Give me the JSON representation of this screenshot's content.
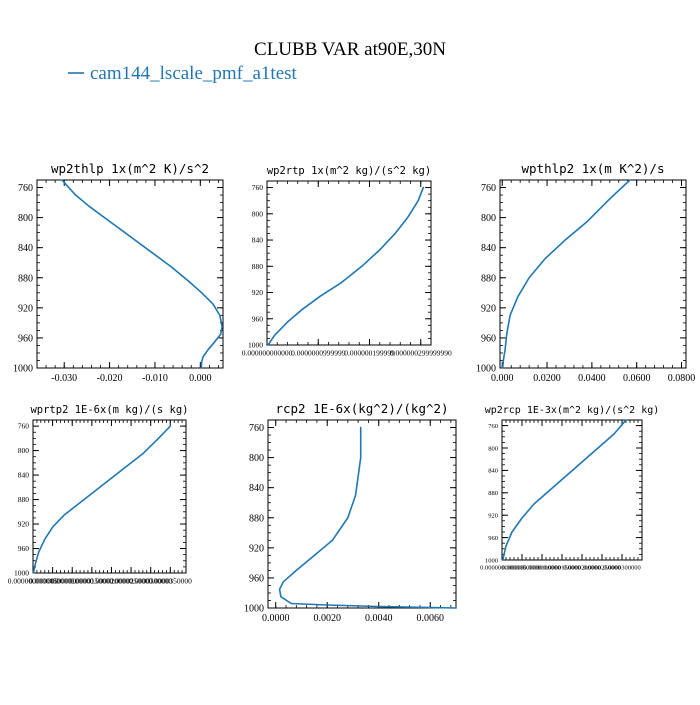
{
  "figure": {
    "title": "CLUBB VAR at90E,30N",
    "legend_label": "cam144_lscale_pmf_a1test",
    "line_color": "#1f77b4"
  },
  "chart_data": [
    {
      "type": "line",
      "title": "wp2thlp  1x(m^2 K)/s^2",
      "xlim": [
        -0.036,
        0.005
      ],
      "ylim": [
        1000,
        750
      ],
      "xticks": [
        -0.03,
        -0.02,
        -0.01,
        0.0
      ],
      "xtick_labels": [
        "-0.030",
        "-0.020",
        "-0.010",
        "0.000"
      ],
      "yticks": [
        760,
        800,
        840,
        880,
        920,
        960,
        1000
      ],
      "ytick_labels": [
        "760",
        "800",
        "840",
        "880",
        "920",
        "960",
        "1000"
      ],
      "series": [
        {
          "x": [
            -0.0305,
            -0.0275,
            -0.0245,
            -0.02,
            -0.0155,
            -0.011,
            -0.0065,
            -0.0025,
            0.0003,
            0.0028,
            0.0043,
            0.0048,
            0.0045,
            0.0032,
            0.0018,
            0.0006,
            0.0003,
            0.0002
          ],
          "y": [
            750,
            770,
            785,
            805,
            825,
            845,
            865,
            885,
            900,
            915,
            930,
            945,
            955,
            965,
            975,
            985,
            992,
            1000
          ]
        }
      ]
    },
    {
      "type": "line",
      "title": "wp2rtp  1x(m^2 kg)/(s^2 kg)",
      "xlim": [
        0.0,
        3.2e-07
      ],
      "ylim": [
        1000,
        750
      ],
      "xticks": [
        0.0,
        1e-07,
        2e-07,
        3e-07
      ],
      "xtick_labels": [
        "0.000000000000",
        "0.0000000999999",
        "0.000000199999",
        "0.000000299999990"
      ],
      "yticks": [
        760,
        800,
        840,
        880,
        920,
        960,
        1000
      ],
      "ytick_labels": [
        "760",
        "800",
        "840",
        "880",
        "920",
        "960",
        "1000"
      ],
      "series": [
        {
          "x": [
            2e-09,
            1.5e-08,
            4e-08,
            7e-08,
            1.05e-07,
            1.45e-07,
            1.85e-07,
            2.2e-07,
            2.5e-07,
            2.75e-07,
            2.95e-07,
            3.05e-07
          ],
          "y": [
            1000,
            985,
            965,
            945,
            925,
            905,
            880,
            855,
            830,
            805,
            780,
            760
          ]
        }
      ]
    },
    {
      "type": "line",
      "title": "wpthlp2  1x(m K^2)/s",
      "xlim": [
        -0.001,
        0.082
      ],
      "ylim": [
        1000,
        750
      ],
      "xticks": [
        0.0,
        0.02,
        0.04,
        0.06,
        0.08
      ],
      "xtick_labels": [
        "0.000",
        "0.0200",
        "0.0400",
        "0.0600",
        "0.0800"
      ],
      "yticks": [
        760,
        800,
        840,
        880,
        920,
        960,
        1000
      ],
      "ytick_labels": [
        "760",
        "800",
        "840",
        "880",
        "920",
        "960",
        "1000"
      ],
      "series": [
        {
          "x": [
            0.0002,
            0.0005,
            0.0013,
            0.002,
            0.0035,
            0.007,
            0.012,
            0.019,
            0.028,
            0.038,
            0.048,
            0.057
          ],
          "y": [
            1000,
            990,
            975,
            955,
            930,
            905,
            880,
            855,
            830,
            805,
            775,
            750
          ]
        }
      ]
    },
    {
      "type": "line",
      "title": "wprtp2  1E-6x(m kg)/(s kg)",
      "xlim": [
        0.0,
        3.9e-05
      ],
      "ylim": [
        1000,
        750
      ],
      "xticks": [
        0.0,
        5e-06,
        1e-05,
        1.5e-05,
        2e-05,
        2.5e-05,
        3e-05,
        3.5e-05
      ],
      "xtick_labels": [
        "0.000000000000",
        "0.00000500000",
        "0.0000100000",
        "0.0000150000",
        "0.0000200000",
        "0.0000250000",
        "0.0000300000",
        "0.0000350000"
      ],
      "yticks": [
        760,
        800,
        840,
        880,
        920,
        960,
        1000
      ],
      "ytick_labels": [
        "760",
        "800",
        "840",
        "880",
        "920",
        "960",
        "1000"
      ],
      "series": [
        {
          "x": [
            1e-07,
            6e-07,
            1.5e-06,
            3e-06,
            5e-06,
            8e-06,
            1.2e-05,
            1.6e-05,
            2e-05,
            2.4e-05,
            2.8e-05,
            3.2e-05,
            3.5e-05
          ],
          "y": [
            1000,
            985,
            965,
            945,
            925,
            905,
            885,
            865,
            845,
            825,
            805,
            780,
            760
          ]
        }
      ]
    },
    {
      "type": "line",
      "title": "rcp2  1E-6x(kg^2)/(kg^2)",
      "xlim": [
        -0.0003,
        0.007
      ],
      "ylim": [
        1000,
        750
      ],
      "xticks": [
        0.0,
        0.002,
        0.004,
        0.006
      ],
      "xtick_labels": [
        "0.0000",
        "0.0020",
        "0.0040",
        "0.0060"
      ],
      "yticks": [
        760,
        800,
        840,
        880,
        920,
        960,
        1000
      ],
      "ytick_labels": [
        "760",
        "800",
        "840",
        "880",
        "920",
        "960",
        "1000"
      ],
      "series": [
        {
          "x": [
            0.007,
            0.004,
            0.002,
            0.0006,
            0.0002,
            0.00015,
            0.0003,
            0.0008,
            0.0015,
            0.0022,
            0.0028,
            0.0031,
            0.0033,
            0.0033
          ],
          "y": [
            1000,
            998,
            996,
            994,
            985,
            975,
            965,
            950,
            930,
            910,
            880,
            850,
            800,
            760
          ]
        }
      ]
    },
    {
      "type": "line",
      "title": "wp2rcp  1E-3x(m^2 kg)/(s^2 kg)",
      "xlim": [
        0.0,
        3.5e-05
      ],
      "ylim": [
        1000,
        750
      ],
      "xticks": [
        0.0,
        5e-06,
        1e-05,
        1.5e-05,
        2e-05,
        2.5e-05,
        3e-05
      ],
      "xtick_labels": [
        "0.000000000000",
        "0.00000500000",
        "0.0000100000",
        "0.0000150000",
        "0.0000200000",
        "0.0000250000",
        "0.0000300000"
      ],
      "yticks": [
        760,
        800,
        840,
        880,
        920,
        960,
        1000
      ],
      "ytick_labels": [
        "760",
        "800",
        "840",
        "880",
        "920",
        "960",
        "1000"
      ],
      "series": [
        {
          "x": [
            2e-07,
            1e-06,
            2.5e-06,
            5e-06,
            8e-06,
            1.2e-05,
            1.6e-05,
            2e-05,
            2.4e-05,
            2.8e-05,
            3.1e-05
          ],
          "y": [
            1000,
            975,
            950,
            925,
            900,
            875,
            850,
            825,
            800,
            775,
            750
          ]
        }
      ]
    }
  ]
}
